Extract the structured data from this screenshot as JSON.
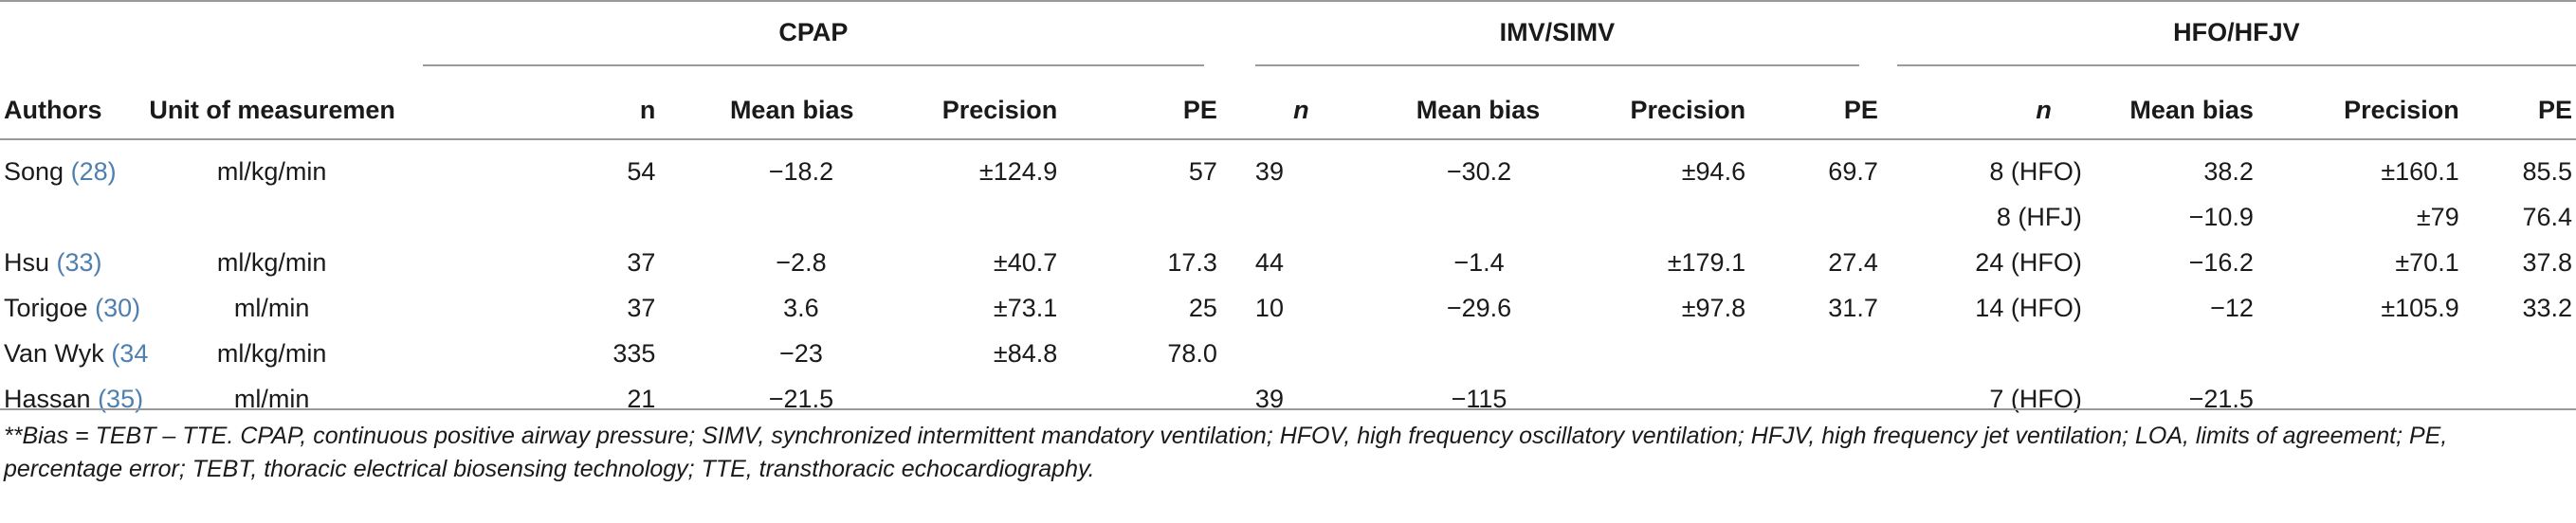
{
  "groups": [
    "CPAP",
    "IMV/SIMV",
    "HFO/HFJV"
  ],
  "columns": {
    "authors": "Authors",
    "unit": "Unit of measurement",
    "cpap_n": "n",
    "cpap_bias": "Mean bias",
    "cpap_precision": "Precision",
    "cpap_pe": "PE",
    "imv_n": "n",
    "imv_bias": "Mean bias",
    "imv_precision": "Precision",
    "imv_pe": "PE",
    "hfo_n": "n",
    "hfo_bias": "Mean bias",
    "hfo_precision": "Precision",
    "hfo_pe": "PE"
  },
  "rows": [
    {
      "author": "Song",
      "ref": "(28)",
      "unit": "ml/kg/min",
      "cpap_n": "54",
      "cpap_bias": "−18.2",
      "cpap_precision": "±124.9",
      "cpap_pe": "57",
      "imv_n": "39",
      "imv_bias": "−30.2",
      "imv_precision": "±94.6",
      "imv_pe": "69.7",
      "hfo_n": "8 (HFO)",
      "hfo_bias": "38.2",
      "hfo_precision": "±160.1",
      "hfo_pe": "85.5"
    },
    {
      "author": "",
      "ref": "",
      "unit": "",
      "cpap_n": "",
      "cpap_bias": "",
      "cpap_precision": "",
      "cpap_pe": "",
      "imv_n": "",
      "imv_bias": "",
      "imv_precision": "",
      "imv_pe": "",
      "hfo_n": "8 (HFJ)",
      "hfo_bias": "−10.9",
      "hfo_precision": "±79",
      "hfo_pe": "76.4"
    },
    {
      "author": "Hsu",
      "ref": "(33)",
      "unit": "ml/kg/min",
      "cpap_n": "37",
      "cpap_bias": "−2.8",
      "cpap_precision": "±40.7",
      "cpap_pe": "17.3",
      "imv_n": "44",
      "imv_bias": "−1.4",
      "imv_precision": "±179.1",
      "imv_pe": "27.4",
      "hfo_n": "24 (HFO)",
      "hfo_bias": "−16.2",
      "hfo_precision": "±70.1",
      "hfo_pe": "37.8"
    },
    {
      "author": "Torigoe",
      "ref": "(30)",
      "unit": "ml/min",
      "cpap_n": "37",
      "cpap_bias": "3.6",
      "cpap_precision": "±73.1",
      "cpap_pe": "25",
      "imv_n": "10",
      "imv_bias": "−29.6",
      "imv_precision": "±97.8",
      "imv_pe": "31.7",
      "hfo_n": "14 (HFO)",
      "hfo_bias": "−12",
      "hfo_precision": "±105.9",
      "hfo_pe": "33.2"
    },
    {
      "author": "Van Wyk",
      "ref": "(34)",
      "unit": "ml/kg/min",
      "cpap_n": "335",
      "cpap_bias": "−23",
      "cpap_precision": "±84.8",
      "cpap_pe": "78.0",
      "imv_n": "",
      "imv_bias": "",
      "imv_precision": "",
      "imv_pe": "",
      "hfo_n": "",
      "hfo_bias": "",
      "hfo_precision": "",
      "hfo_pe": ""
    },
    {
      "author": "Hassan",
      "ref": "(35)",
      "unit": "ml/min",
      "cpap_n": "21",
      "cpap_bias": "−21.5",
      "cpap_precision": "",
      "cpap_pe": "",
      "imv_n": "39",
      "imv_bias": "−115",
      "imv_precision": "",
      "imv_pe": "",
      "hfo_n": "7 (HFO)",
      "hfo_bias": "−21.5",
      "hfo_precision": "",
      "hfo_pe": ""
    }
  ],
  "footnote": "**Bias = TEBT – TTE. CPAP, continuous positive airway pressure; SIMV, synchronized intermittent mandatory ventilation; HFOV, high frequency oscillatory ventilation; HFJV, high frequency jet ventilation; LOA, limits of agreement; PE, percentage error; TEBT, thoracic electrical biosensing technology; TTE, transthoracic echocardiography."
}
